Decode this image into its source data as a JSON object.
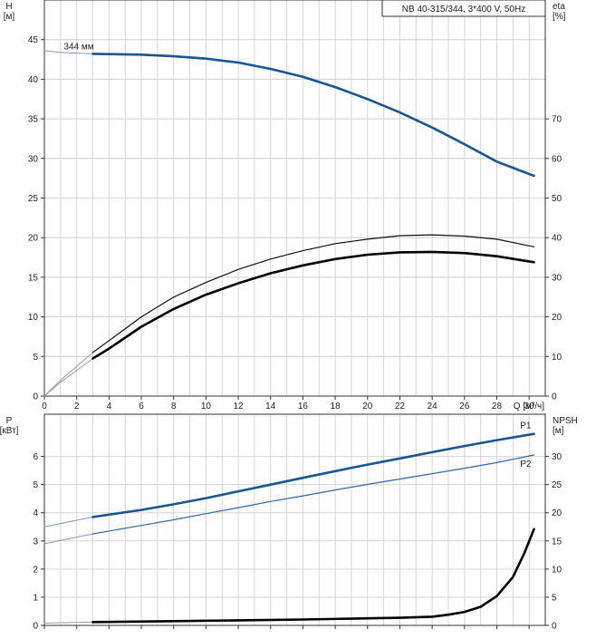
{
  "chart_data": [
    {
      "type": "line",
      "title": "NB 40-315/344, 3*400 V, 50Hz",
      "xlabel": "Q [м³/ч]",
      "xlim": [
        0,
        31
      ],
      "xticks": [
        0,
        2,
        4,
        6,
        8,
        10,
        12,
        14,
        16,
        18,
        20,
        22,
        24,
        26,
        28,
        30
      ],
      "grid": true,
      "left_axis": {
        "label_top": "H",
        "label_unit": "[м]",
        "ylim": [
          0,
          50
        ],
        "ticks": [
          0,
          5,
          10,
          15,
          20,
          25,
          30,
          35,
          40,
          45
        ]
      },
      "right_axis": {
        "label_top": "eta",
        "label_unit": "[%]",
        "ylim": [
          0,
          100
        ],
        "ticks": [
          0,
          10,
          20,
          30,
          40,
          50,
          60,
          70
        ]
      },
      "annotation": "344 мм",
      "series": [
        {
          "role": "head-extrapolated",
          "axis": "left",
          "x": [
            0,
            1,
            2,
            3
          ],
          "y": [
            43.6,
            43.4,
            43.3,
            43.2
          ]
        },
        {
          "role": "head",
          "axis": "left",
          "x": [
            3,
            6,
            8,
            10,
            12,
            14,
            16,
            18,
            20,
            22,
            24,
            26,
            28,
            30.3
          ],
          "y": [
            43.2,
            43.1,
            42.9,
            42.6,
            42.1,
            41.3,
            40.3,
            39.0,
            37.5,
            35.8,
            33.9,
            31.8,
            29.6,
            27.8
          ]
        },
        {
          "role": "eta-extrapolated",
          "axis": "right",
          "x": [
            0,
            1,
            2,
            3
          ],
          "y": [
            0,
            4,
            7.5,
            11
          ]
        },
        {
          "role": "eta",
          "axis": "right",
          "x": [
            3,
            4,
            6,
            8,
            10,
            12,
            14,
            16,
            18,
            20,
            22,
            24,
            26,
            28,
            30.3
          ],
          "y": [
            11,
            14,
            20,
            25,
            28.7,
            32,
            34.6,
            36.7,
            38.5,
            39.6,
            40.5,
            40.7,
            40.4,
            39.6,
            37.7
          ]
        },
        {
          "role": "eta-pump-extrapolated",
          "axis": "right",
          "x": [
            0,
            1,
            2,
            3
          ],
          "y": [
            0,
            3.5,
            6.5,
            9.5
          ]
        },
        {
          "role": "eta-pump",
          "axis": "right",
          "x": [
            3,
            4,
            6,
            8,
            10,
            12,
            14,
            16,
            18,
            20,
            22,
            24,
            26,
            28,
            30.3
          ],
          "y": [
            9.5,
            12,
            17.5,
            22,
            25.6,
            28.5,
            31,
            33,
            34.6,
            35.7,
            36.3,
            36.4,
            36.1,
            35.3,
            33.8
          ]
        }
      ]
    },
    {
      "type": "line",
      "xlim": [
        0,
        31
      ],
      "xticks": [
        0,
        2,
        4,
        6,
        8,
        10,
        12,
        14,
        16,
        18,
        20,
        22,
        24,
        26,
        28,
        30
      ],
      "grid": true,
      "left_axis": {
        "label_top": "P",
        "label_unit": "[кВт]",
        "ylim": [
          0,
          7.5
        ],
        "ticks": [
          0,
          1,
          2,
          3,
          4,
          5,
          6
        ]
      },
      "right_axis": {
        "label_top": "NPSH",
        "label_unit": "[м]",
        "ylim": [
          0,
          37.5
        ],
        "ticks": [
          0,
          5,
          10,
          15,
          20,
          25,
          30
        ]
      },
      "series": [
        {
          "name": "P1",
          "role": "p1-extrapolated",
          "axis": "left",
          "x": [
            0,
            3
          ],
          "y": [
            3.5,
            3.85
          ]
        },
        {
          "name": "P1",
          "role": "p1",
          "axis": "left",
          "x": [
            3,
            6,
            8,
            10,
            12,
            14,
            16,
            18,
            20,
            22,
            24,
            26,
            28,
            30.3
          ],
          "y": [
            3.85,
            4.1,
            4.3,
            4.52,
            4.76,
            5.0,
            5.24,
            5.48,
            5.71,
            5.93,
            6.15,
            6.37,
            6.58,
            6.8
          ]
        },
        {
          "name": "P2",
          "role": "p2-extrapolated",
          "axis": "left",
          "x": [
            0,
            3
          ],
          "y": [
            2.9,
            3.25
          ]
        },
        {
          "name": "P2",
          "role": "p2",
          "axis": "left",
          "x": [
            3,
            6,
            8,
            10,
            12,
            14,
            16,
            18,
            20,
            22,
            24,
            26,
            28,
            30.3
          ],
          "y": [
            3.25,
            3.55,
            3.75,
            3.97,
            4.18,
            4.4,
            4.6,
            4.81,
            5.01,
            5.2,
            5.39,
            5.58,
            5.78,
            6.05
          ]
        },
        {
          "role": "npsh-extrapolated",
          "axis": "right",
          "x": [
            0,
            3
          ],
          "y": [
            0.4,
            0.6
          ]
        },
        {
          "role": "npsh",
          "axis": "right",
          "x": [
            3,
            8,
            12,
            16,
            20,
            22,
            24,
            25,
            26,
            27,
            28,
            29,
            29.7,
            30.3
          ],
          "y": [
            0.6,
            0.75,
            0.9,
            1.05,
            1.25,
            1.35,
            1.55,
            1.9,
            2.4,
            3.3,
            5.2,
            8.6,
            12.8,
            17.1
          ]
        }
      ],
      "legend": [
        "P1",
        "P2"
      ]
    }
  ]
}
